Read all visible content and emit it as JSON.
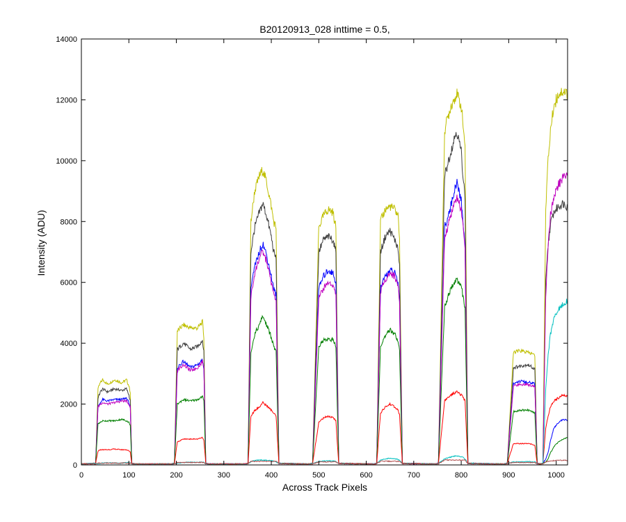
{
  "chart_data": {
    "type": "line",
    "title": "B20120913_028 inttime = 0.5,",
    "xlabel": "Across Track Pixels",
    "ylabel": "Intensity (ADU)",
    "xlim": [
      0,
      1024
    ],
    "ylim": [
      0,
      14000
    ],
    "xticks": [
      0,
      100,
      200,
      300,
      400,
      500,
      600,
      700,
      800,
      900,
      1000
    ],
    "yticks": [
      0,
      2000,
      4000,
      6000,
      8000,
      10000,
      12000,
      14000
    ],
    "grid": false,
    "legend": "none",
    "x_breakpoints": [
      0,
      30,
      35,
      40,
      45,
      55,
      70,
      85,
      95,
      100,
      103,
      106,
      112,
      190,
      196,
      202,
      215,
      230,
      245,
      255,
      258,
      262,
      268,
      345,
      351,
      357,
      365,
      375,
      382,
      390,
      400,
      405,
      410,
      416,
      475,
      481,
      487,
      500,
      510,
      520,
      530,
      536,
      542,
      610,
      616,
      622,
      630,
      640,
      650,
      660,
      667,
      670,
      676,
      740,
      746,
      752,
      765,
      778,
      790,
      800,
      805,
      808,
      814,
      885,
      891,
      897,
      910,
      925,
      940,
      950,
      955,
      960,
      966,
      972,
      978,
      983,
      988,
      995,
      1005,
      1015,
      1024
    ],
    "series": [
      {
        "color": "#bfbf00",
        "values": [
          30,
          50,
          2500,
          2700,
          2800,
          2650,
          2800,
          2700,
          2800,
          2600,
          2400,
          50,
          30,
          30,
          50,
          4400,
          4600,
          4500,
          4500,
          4700,
          4200,
          50,
          30,
          30,
          50,
          8000,
          9000,
          9500,
          9700,
          9300,
          8500,
          8000,
          7800,
          50,
          30,
          30,
          50,
          7800,
          8200,
          8400,
          8300,
          7800,
          50,
          30,
          30,
          50,
          8000,
          8400,
          8500,
          8400,
          8200,
          7500,
          50,
          30,
          30,
          50,
          11000,
          11800,
          12200,
          11800,
          11000,
          10500,
          50,
          30,
          30,
          50,
          3700,
          3750,
          3700,
          3650,
          3600,
          50,
          30,
          50,
          8500,
          10000,
          11000,
          11800,
          12200,
          12300,
          12200
        ]
      },
      {
        "color": "#3f3f3f",
        "values": [
          30,
          50,
          2200,
          2400,
          2500,
          2400,
          2500,
          2450,
          2500,
          2300,
          2100,
          50,
          30,
          30,
          50,
          3800,
          4000,
          3800,
          3900,
          4100,
          3700,
          50,
          30,
          30,
          50,
          7000,
          7800,
          8300,
          8600,
          8200,
          7500,
          7000,
          6800,
          50,
          30,
          30,
          50,
          7000,
          7400,
          7500,
          7400,
          7000,
          50,
          30,
          30,
          50,
          7000,
          7500,
          7700,
          7400,
          7100,
          6500,
          50,
          30,
          30,
          50,
          9500,
          10300,
          11000,
          10300,
          9300,
          8800,
          50,
          30,
          30,
          50,
          3200,
          3250,
          3300,
          3200,
          3150,
          50,
          30,
          50,
          6000,
          7200,
          7900,
          8300,
          8500,
          8600,
          8500
        ]
      },
      {
        "color": "#0000ff",
        "values": [
          30,
          50,
          1900,
          2050,
          2150,
          2100,
          2150,
          2150,
          2200,
          2050,
          1900,
          50,
          30,
          30,
          50,
          3200,
          3400,
          3200,
          3300,
          3450,
          3200,
          50,
          30,
          30,
          50,
          5800,
          6500,
          7000,
          7300,
          6900,
          6200,
          5800,
          5600,
          50,
          30,
          30,
          50,
          5800,
          6200,
          6400,
          6300,
          6000,
          50,
          30,
          30,
          50,
          5800,
          6200,
          6400,
          6300,
          6000,
          5400,
          50,
          30,
          30,
          50,
          7800,
          8500,
          9300,
          8700,
          7800,
          7200,
          50,
          30,
          30,
          50,
          2700,
          2750,
          2700,
          2700,
          2650,
          50,
          30,
          50,
          200,
          400,
          800,
          1200,
          1400,
          1500,
          1450
        ]
      },
      {
        "color": "#bf00bf",
        "values": [
          30,
          50,
          1900,
          2000,
          2050,
          2000,
          2050,
          2100,
          2100,
          2000,
          1900,
          50,
          30,
          30,
          50,
          3100,
          3300,
          3100,
          3200,
          3400,
          3200,
          50,
          30,
          30,
          50,
          5500,
          6300,
          6800,
          7000,
          6700,
          6000,
          5600,
          5400,
          50,
          30,
          30,
          50,
          5500,
          5800,
          6000,
          5900,
          5600,
          50,
          30,
          30,
          50,
          5700,
          6100,
          6300,
          6200,
          5900,
          5300,
          50,
          30,
          30,
          50,
          7400,
          8200,
          8800,
          8400,
          7600,
          7000,
          50,
          30,
          30,
          50,
          2600,
          2650,
          2650,
          2600,
          2600,
          50,
          30,
          50,
          5500,
          7200,
          8200,
          8800,
          9200,
          9500,
          9500
        ]
      },
      {
        "color": "#007f00",
        "values": [
          30,
          50,
          1350,
          1400,
          1450,
          1450,
          1450,
          1500,
          1450,
          1400,
          1300,
          50,
          30,
          30,
          50,
          2000,
          2150,
          2100,
          2150,
          2250,
          2100,
          50,
          30,
          30,
          50,
          3700,
          4300,
          4600,
          4900,
          4600,
          4200,
          3900,
          3700,
          50,
          30,
          30,
          50,
          3900,
          4100,
          4150,
          4100,
          3900,
          50,
          30,
          30,
          50,
          3900,
          4200,
          4450,
          4300,
          4100,
          3800,
          50,
          30,
          30,
          50,
          5200,
          5800,
          6100,
          5900,
          5400,
          5100,
          50,
          30,
          30,
          50,
          1750,
          1800,
          1800,
          1750,
          1700,
          50,
          30,
          50,
          100,
          200,
          400,
          600,
          750,
          850,
          900
        ]
      },
      {
        "color": "#ff0000",
        "values": [
          30,
          50,
          450,
          500,
          500,
          500,
          520,
          500,
          500,
          460,
          420,
          50,
          30,
          30,
          50,
          750,
          850,
          850,
          850,
          900,
          800,
          50,
          30,
          30,
          50,
          1600,
          1800,
          1900,
          2050,
          1950,
          1800,
          1700,
          1600,
          50,
          30,
          30,
          50,
          1400,
          1550,
          1600,
          1550,
          1450,
          50,
          30,
          30,
          50,
          1700,
          1900,
          2000,
          1900,
          1800,
          1650,
          50,
          30,
          30,
          50,
          2100,
          2300,
          2400,
          2300,
          2200,
          2100,
          50,
          30,
          30,
          50,
          700,
          700,
          700,
          680,
          650,
          50,
          30,
          50,
          1200,
          1600,
          1900,
          2100,
          2200,
          2300,
          2250
        ]
      },
      {
        "color": "#00bfbf",
        "values": [
          30,
          50,
          40,
          50,
          60,
          70,
          60,
          60,
          70,
          80,
          60,
          40,
          30,
          30,
          50,
          60,
          80,
          90,
          80,
          100,
          80,
          50,
          30,
          30,
          50,
          100,
          150,
          160,
          160,
          150,
          140,
          120,
          100,
          50,
          30,
          30,
          50,
          110,
          130,
          140,
          130,
          120,
          50,
          30,
          30,
          50,
          150,
          200,
          220,
          200,
          180,
          150,
          50,
          30,
          30,
          50,
          200,
          260,
          300,
          270,
          240,
          200,
          50,
          30,
          30,
          50,
          100,
          100,
          110,
          100,
          100,
          50,
          30,
          50,
          2500,
          3600,
          4300,
          4800,
          5100,
          5300,
          5400
        ]
      },
      {
        "color": "#b05050",
        "values": [
          30,
          30,
          60,
          60,
          60,
          60,
          60,
          60,
          60,
          60,
          60,
          40,
          30,
          30,
          40,
          80,
          80,
          80,
          80,
          80,
          80,
          40,
          30,
          30,
          40,
          120,
          120,
          120,
          120,
          120,
          120,
          120,
          120,
          40,
          30,
          30,
          40,
          100,
          100,
          100,
          100,
          100,
          40,
          30,
          30,
          40,
          120,
          120,
          120,
          120,
          120,
          120,
          40,
          30,
          30,
          40,
          160,
          160,
          160,
          160,
          160,
          160,
          40,
          30,
          30,
          40,
          80,
          80,
          80,
          80,
          80,
          40,
          30,
          40,
          100,
          120,
          130,
          140,
          150,
          150,
          150
        ]
      }
    ]
  }
}
